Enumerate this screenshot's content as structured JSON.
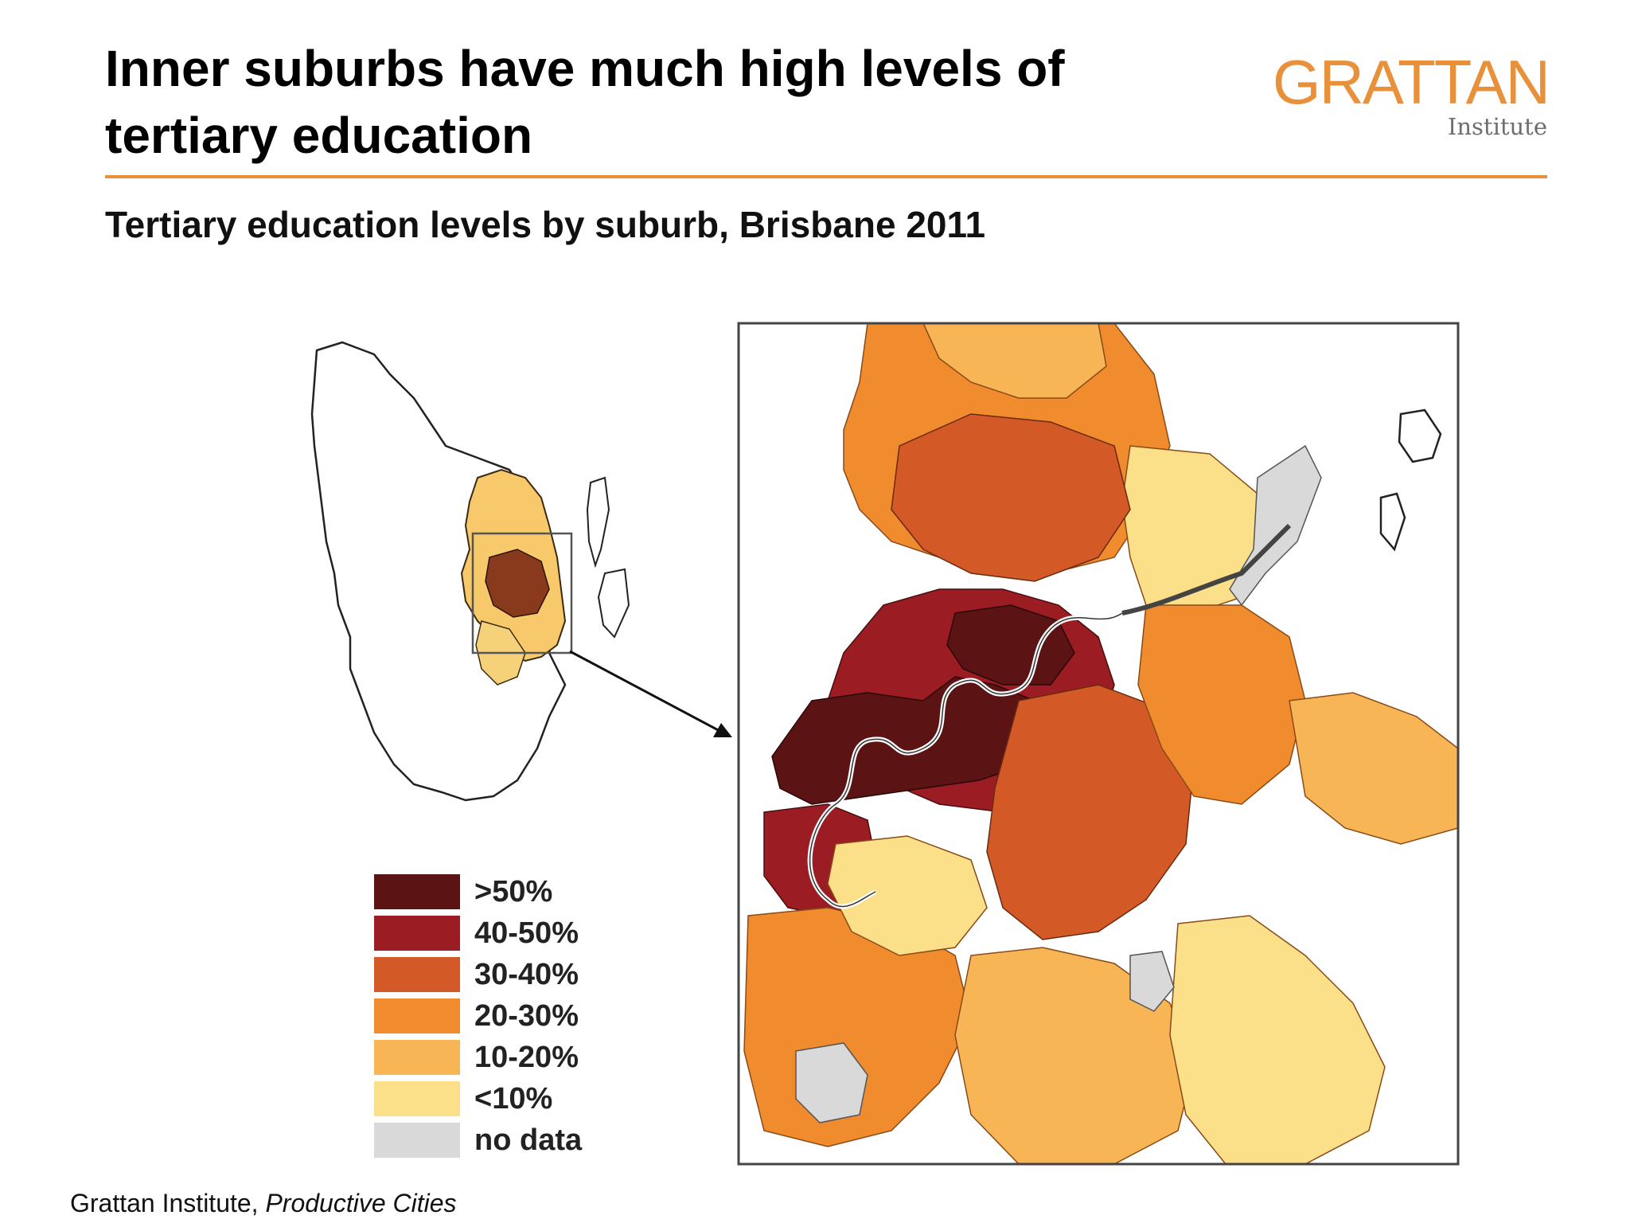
{
  "header": {
    "title": "Inner suburbs have much high levels of tertiary education",
    "subtitle": "Tertiary education levels by suburb, Brisbane 2011"
  },
  "logo": {
    "word": "GRATTAN",
    "sub": "Institute"
  },
  "colors": {
    "accent": "#e8913a",
    "over50": "#5b1313",
    "p40_50": "#9b1c23",
    "p30_40": "#d35a26",
    "p20_30": "#f08b2e",
    "p10_20": "#f7b556",
    "under10": "#fbdf89",
    "no_data": "#d9d9d9"
  },
  "legend": {
    "items": [
      {
        "label": ">50%",
        "color": "#5b1313"
      },
      {
        "label": "40-50%",
        "color": "#9b1c23"
      },
      {
        "label": "30-40%",
        "color": "#d35a26"
      },
      {
        "label": "20-30%",
        "color": "#f08b2e"
      },
      {
        "label": "10-20%",
        "color": "#f7b556"
      },
      {
        "label": "<10%",
        "color": "#fbdf89"
      },
      {
        "label": "no data",
        "color": "#d9d9d9"
      }
    ]
  },
  "footer": {
    "source_org": "Grattan Institute, ",
    "source_title": "Productive Cities"
  }
}
